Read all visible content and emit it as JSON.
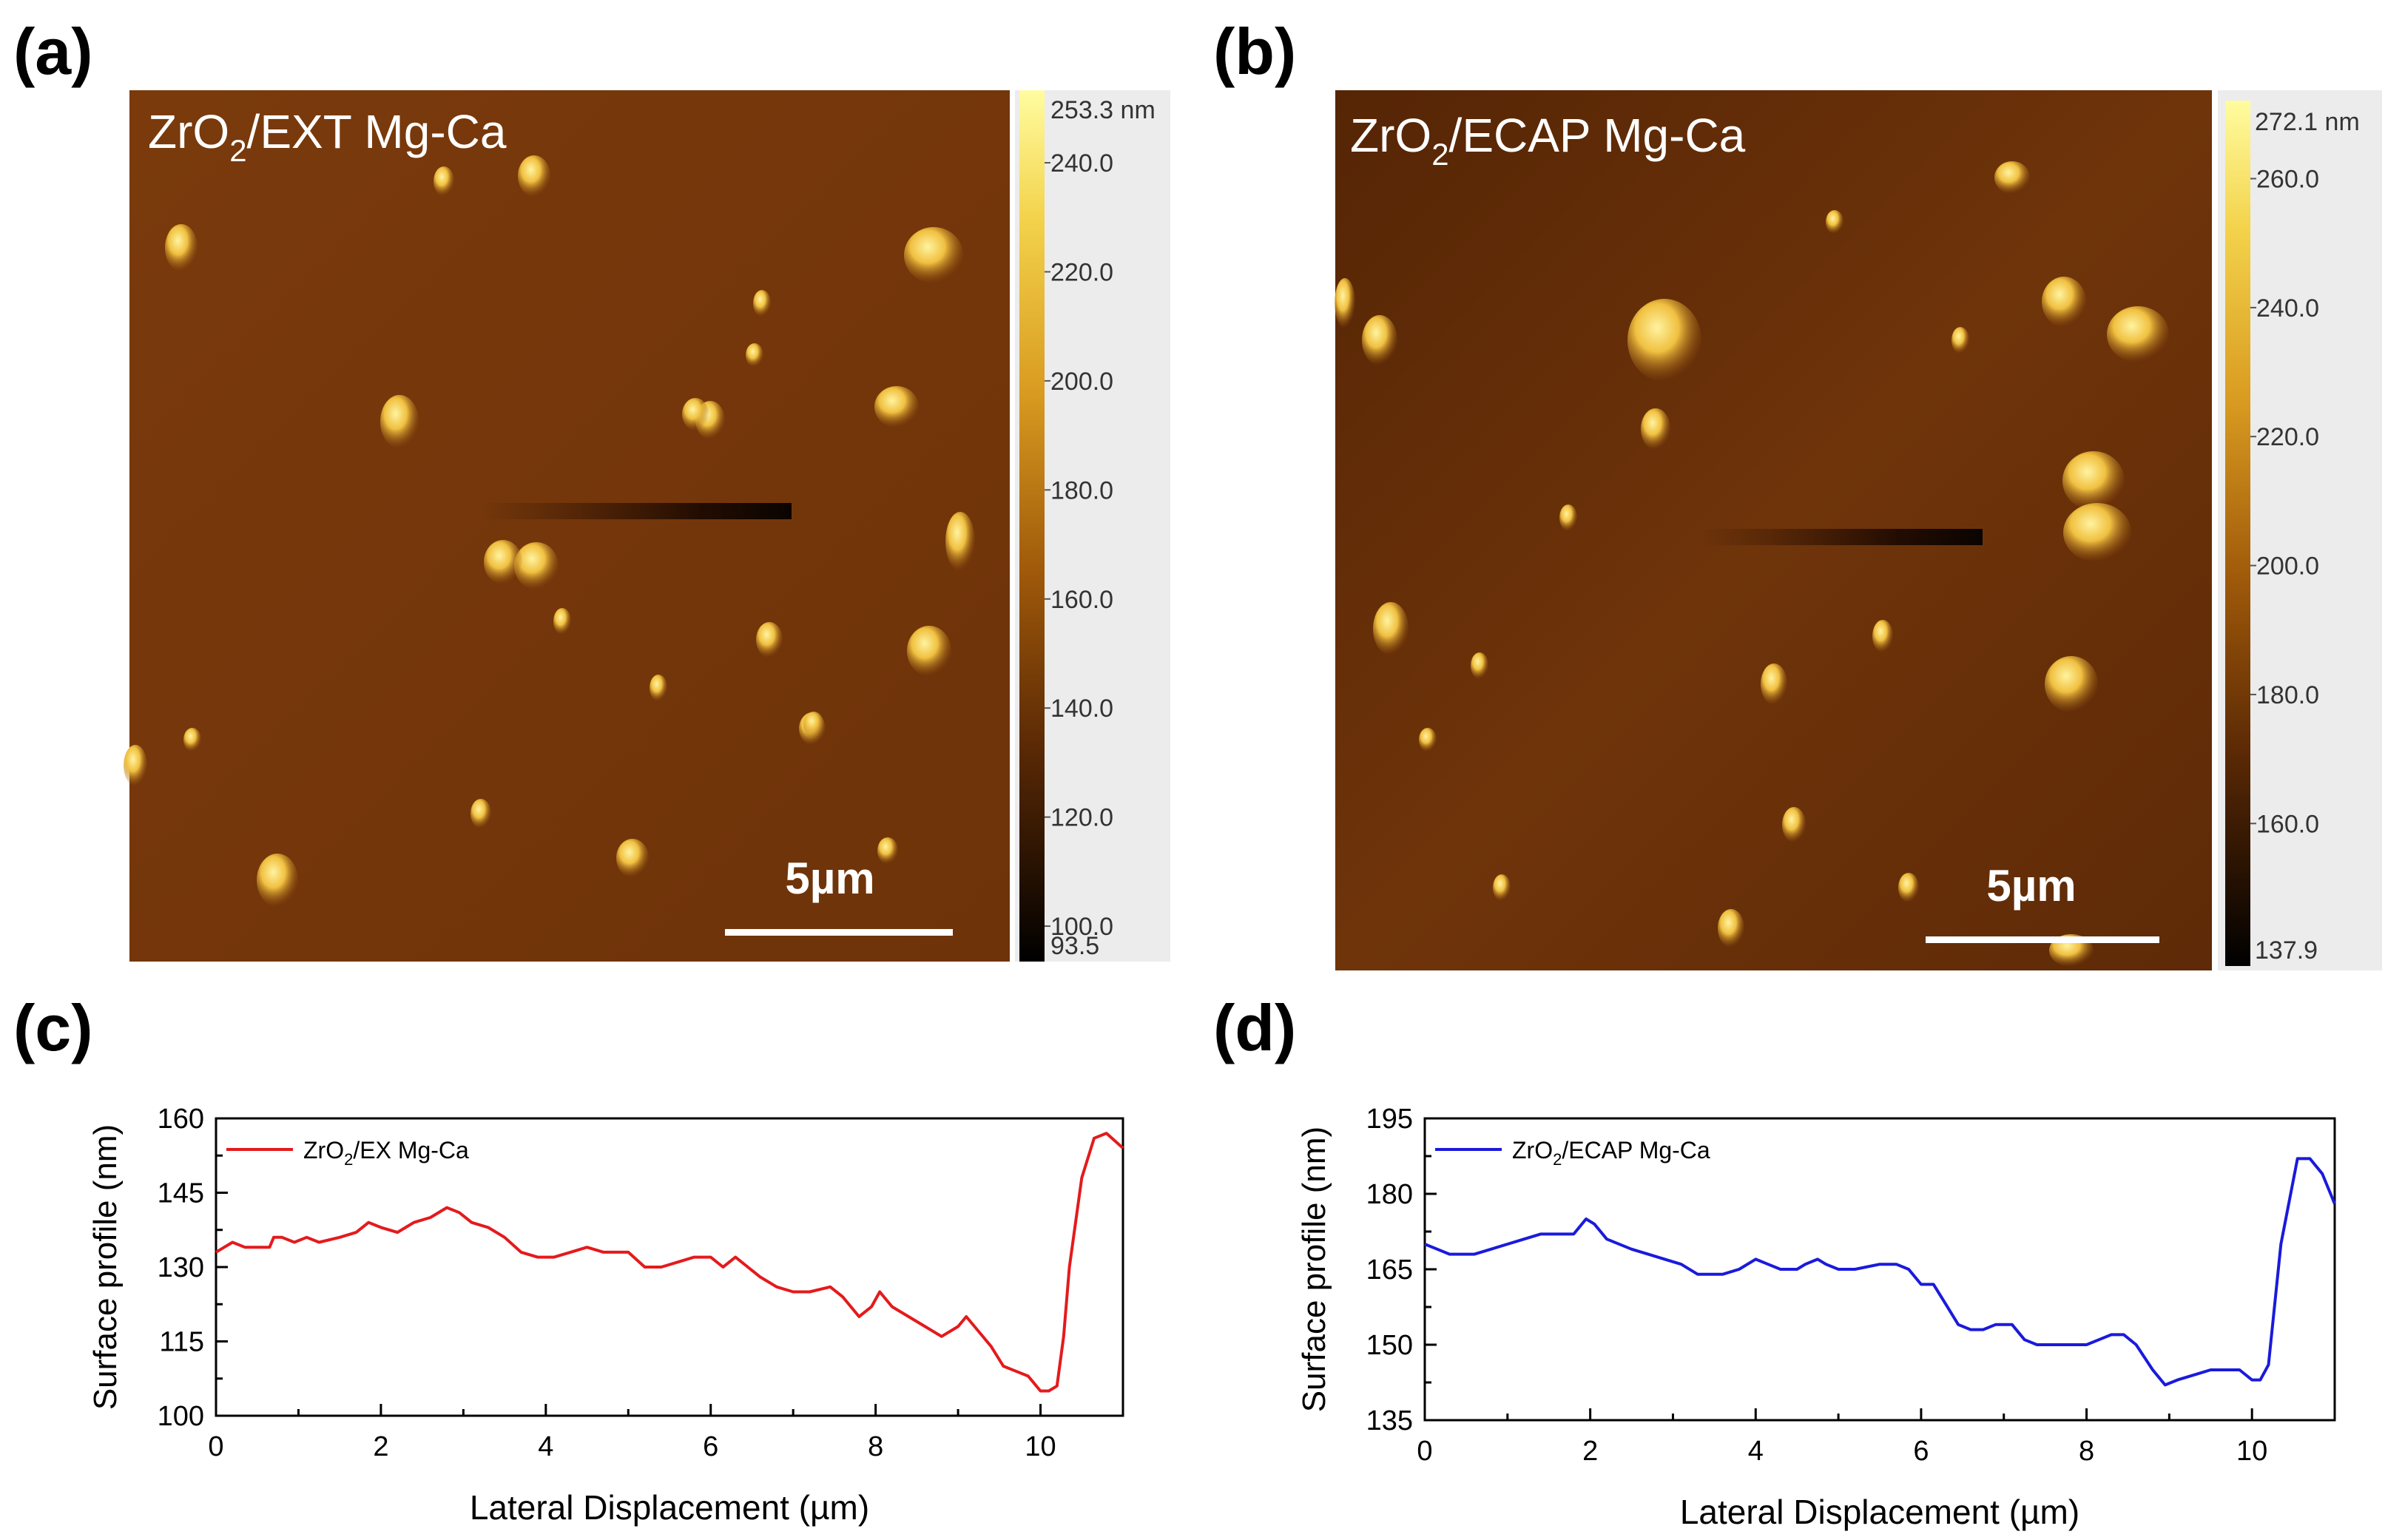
{
  "panels": {
    "a": {
      "label": "(a)",
      "title_main": "ZrO",
      "title_sub": "2",
      "title_rest": "/EXT Mg-Ca",
      "scale_bar": "5µm",
      "colorbar": {
        "max_label": "253.3 nm",
        "min_label": "93.5",
        "min": 93.5,
        "max": 253.3,
        "ticks": [
          240.0,
          220.0,
          200.0,
          180.0,
          160.0,
          140.0,
          120.0,
          100.0
        ]
      }
    },
    "b": {
      "label": "(b)",
      "title_main": "ZrO",
      "title_sub": "2",
      "title_rest": "/ECAP Mg-Ca",
      "scale_bar": "5µm",
      "colorbar": {
        "max_label": "272.1 nm",
        "min_label": "137.9",
        "min": 137.9,
        "max": 272.1,
        "ticks": [
          260.0,
          240.0,
          220.0,
          200.0,
          180.0,
          160.0
        ]
      }
    },
    "c": {
      "label": "(c)"
    },
    "d": {
      "label": "(d)"
    }
  },
  "colors": {
    "profile_c": "#e41a1c",
    "profile_d": "#1a1adc",
    "afm_base": "#7a3a0c"
  },
  "chart_data": [
    {
      "type": "line",
      "xlabel": "Lateral Displacement (µm)",
      "ylabel": "Surface profile (nm)",
      "xlim": [
        0,
        11
      ],
      "ylim": [
        100,
        160
      ],
      "xticks": [
        0,
        2,
        4,
        6,
        8,
        10
      ],
      "yticks": [
        100,
        115,
        130,
        145,
        160
      ],
      "legend_position": "top-left",
      "series": [
        {
          "name_main": "ZrO",
          "name_sub": "2",
          "name_rest": "/EX Mg-Ca",
          "x": [
            0,
            0.1,
            0.2,
            0.35,
            0.5,
            0.65,
            0.7,
            0.8,
            0.95,
            1.1,
            1.25,
            1.5,
            1.7,
            1.85,
            2.0,
            2.2,
            2.4,
            2.6,
            2.8,
            2.95,
            3.1,
            3.3,
            3.5,
            3.7,
            3.9,
            4.1,
            4.3,
            4.5,
            4.7,
            5.0,
            5.2,
            5.4,
            5.6,
            5.8,
            6.0,
            6.15,
            6.3,
            6.45,
            6.6,
            6.8,
            7.0,
            7.2,
            7.45,
            7.6,
            7.7,
            7.8,
            7.95,
            8.05,
            8.2,
            8.4,
            8.6,
            8.8,
            9.0,
            9.1,
            9.25,
            9.4,
            9.55,
            9.7,
            9.85,
            10.0,
            10.1,
            10.2,
            10.28,
            10.35,
            10.5,
            10.65,
            10.8,
            11.0
          ],
          "y": [
            133,
            134,
            135,
            134,
            134,
            134,
            136,
            136,
            135,
            136,
            135,
            136,
            137,
            139,
            138,
            137,
            139,
            140,
            142,
            141,
            139,
            138,
            136,
            133,
            132,
            132,
            133,
            134,
            133,
            133,
            130,
            130,
            131,
            132,
            132,
            130,
            132,
            130,
            128,
            126,
            125,
            125,
            126,
            124,
            122,
            120,
            122,
            125,
            122,
            120,
            118,
            116,
            118,
            120,
            117,
            114,
            110,
            109,
            108,
            105,
            105,
            106,
            116,
            130,
            148,
            156,
            157,
            154
          ]
        }
      ]
    },
    {
      "type": "line",
      "xlabel": "Lateral Displacement (µm)",
      "ylabel": "Surface profile (nm)",
      "xlim": [
        0,
        11
      ],
      "ylim": [
        135,
        195
      ],
      "xticks": [
        0,
        2,
        4,
        6,
        8,
        10
      ],
      "yticks": [
        135,
        150,
        165,
        180,
        195
      ],
      "legend_position": "top-left",
      "series": [
        {
          "name_main": "ZrO",
          "name_sub": "2",
          "name_rest": "/ECAP Mg-Ca",
          "x": [
            0,
            0.15,
            0.3,
            0.6,
            0.8,
            1.0,
            1.2,
            1.4,
            1.6,
            1.8,
            1.95,
            2.05,
            2.2,
            2.5,
            2.7,
            2.9,
            3.1,
            3.3,
            3.45,
            3.6,
            3.8,
            4.0,
            4.15,
            4.3,
            4.5,
            4.6,
            4.75,
            4.85,
            5.0,
            5.2,
            5.5,
            5.7,
            5.85,
            6.0,
            6.15,
            6.3,
            6.45,
            6.6,
            6.75,
            6.9,
            7.1,
            7.25,
            7.4,
            7.6,
            7.8,
            8.0,
            8.15,
            8.3,
            8.45,
            8.6,
            8.8,
            8.95,
            9.1,
            9.3,
            9.5,
            9.7,
            9.85,
            10.0,
            10.1,
            10.2,
            10.35,
            10.55,
            10.7,
            10.85,
            11.0
          ],
          "y": [
            170,
            169,
            168,
            168,
            169,
            170,
            171,
            172,
            172,
            172,
            175,
            174,
            171,
            169,
            168,
            167,
            166,
            164,
            164,
            164,
            165,
            167,
            166,
            165,
            165,
            166,
            167,
            166,
            165,
            165,
            166,
            166,
            165,
            162,
            162,
            158,
            154,
            153,
            153,
            154,
            154,
            151,
            150,
            150,
            150,
            150,
            151,
            152,
            152,
            150,
            145,
            142,
            143,
            144,
            145,
            145,
            145,
            143,
            143,
            146,
            170,
            187,
            187,
            184,
            178
          ]
        }
      ]
    }
  ]
}
